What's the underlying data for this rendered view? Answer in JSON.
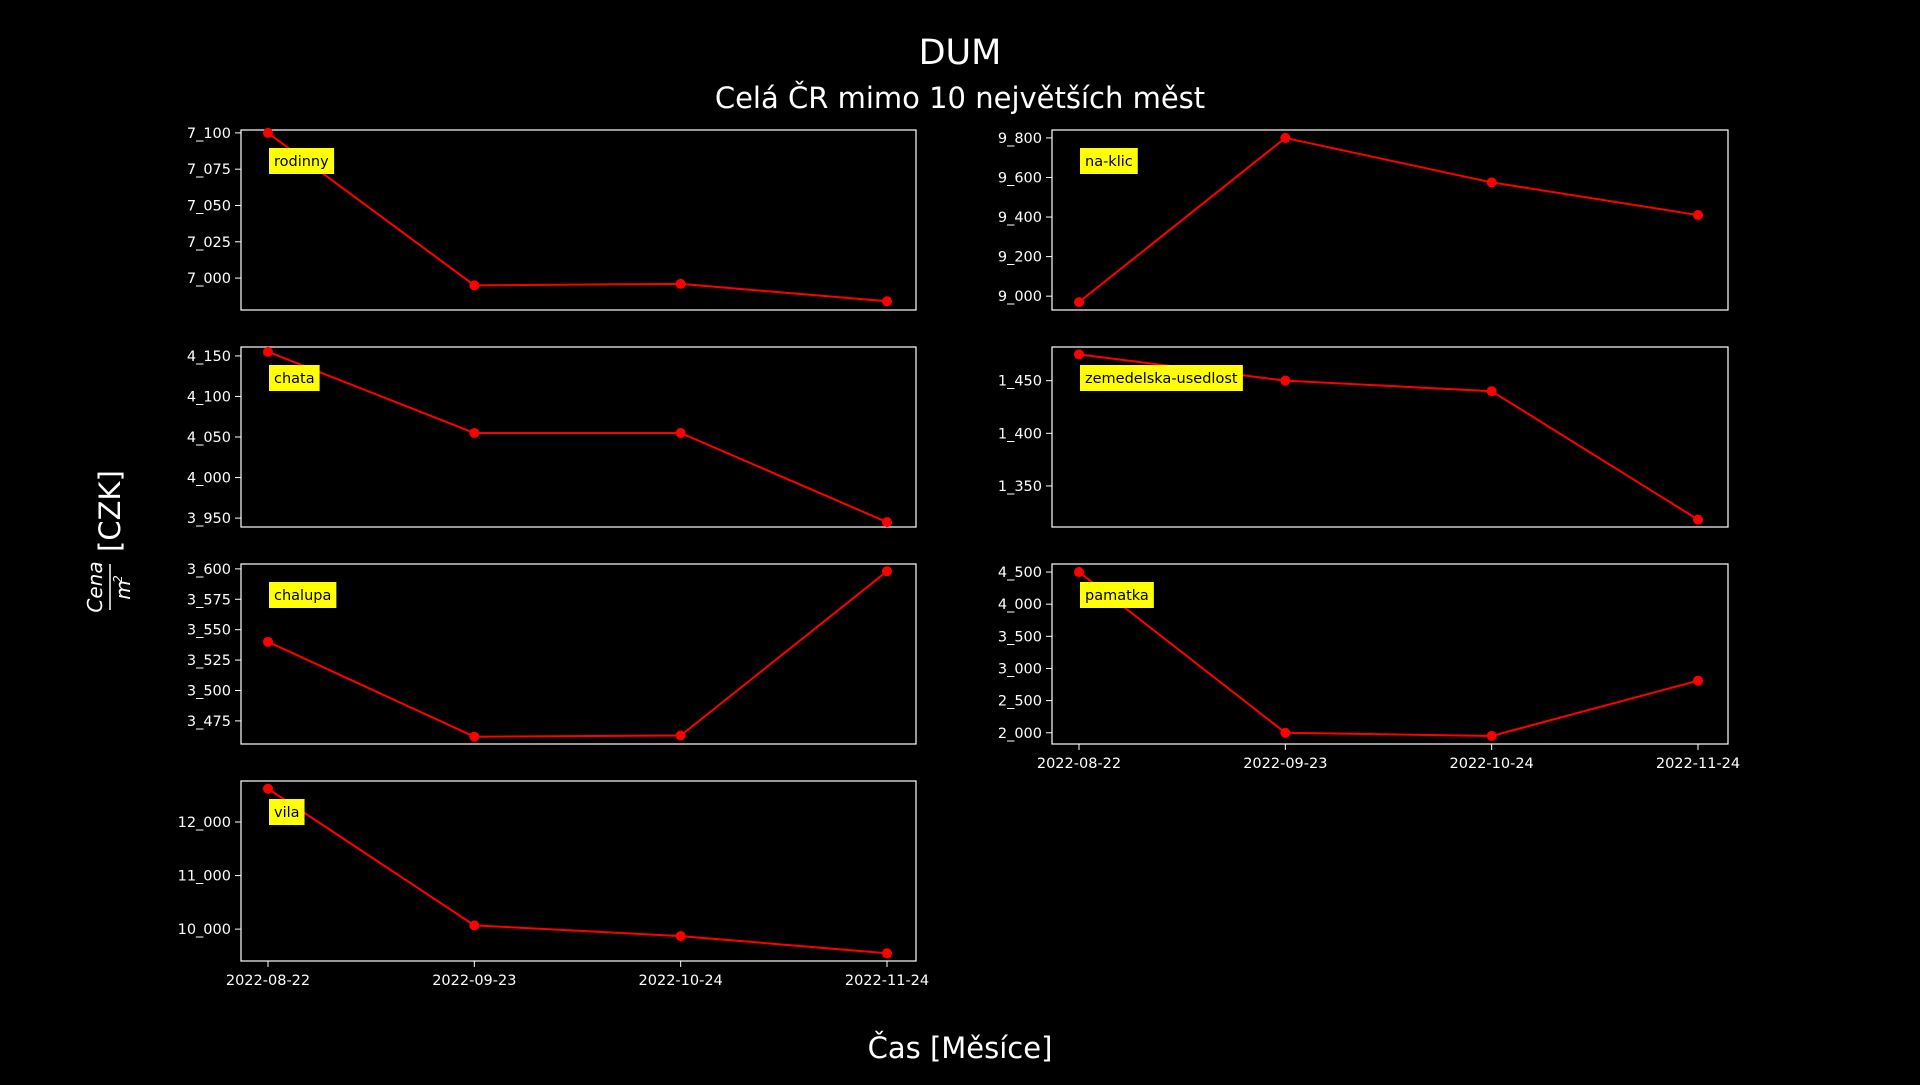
{
  "colors": {
    "background": "#000000",
    "line": "#ff0000",
    "axes": "#ffffff",
    "label_box": "#ffff00",
    "label_text": "#000000"
  },
  "chart_data": {
    "type": "line",
    "title": "DUM",
    "subtitle": "Celá ČR mimo 10 největších měst",
    "xlabel": "Čas [Měsíce]",
    "ylabel": {
      "numerator": "Cena",
      "denominator": "m",
      "exponent": "2",
      "unit": "[CZK]"
    },
    "x": [
      "2022-08-22",
      "2022-09-23",
      "2022-10-24",
      "2022-11-24"
    ],
    "grid": false,
    "panels": [
      {
        "name": "rodinny",
        "values": [
          7100,
          6995,
          6996,
          6984
        ],
        "ylim": [
          6978,
          7102
        ],
        "yticks": [
          7000,
          7025,
          7050,
          7075,
          7100
        ],
        "ytick_labels": [
          "7_000",
          "7_025",
          "7_050",
          "7_075",
          "7_100"
        ]
      },
      {
        "name": "na-klic",
        "values": [
          8970,
          9800,
          9575,
          9410
        ],
        "ylim": [
          8930,
          9840
        ],
        "yticks": [
          9000,
          9200,
          9400,
          9600,
          9800
        ],
        "ytick_labels": [
          "9_000",
          "9_200",
          "9_400",
          "9_600",
          "9_800"
        ]
      },
      {
        "name": "chata",
        "values": [
          4155,
          4055,
          4055,
          3945
        ],
        "ylim": [
          3939,
          4161
        ],
        "yticks": [
          3950,
          4000,
          4050,
          4100,
          4150
        ],
        "ytick_labels": [
          "3_950",
          "4_000",
          "4_050",
          "4_100",
          "4_150"
        ]
      },
      {
        "name": "zemedelska-usedlost",
        "values": [
          1475,
          1450,
          1440,
          1318
        ],
        "ylim": [
          1311,
          1482
        ],
        "yticks": [
          1350,
          1400,
          1450
        ],
        "ytick_labels": [
          "1_350",
          "1_400",
          "1_450"
        ]
      },
      {
        "name": "chalupa",
        "values": [
          3540,
          3462,
          3463,
          3598
        ],
        "ylim": [
          3456,
          3604
        ],
        "yticks": [
          3475,
          3500,
          3525,
          3550,
          3575,
          3600
        ],
        "ytick_labels": [
          "3_475",
          "3_500",
          "3_525",
          "3_550",
          "3_575",
          "3_600"
        ]
      },
      {
        "name": "pamatka",
        "values": [
          4500,
          2000,
          1950,
          2810
        ],
        "ylim": [
          1825,
          4625
        ],
        "yticks": [
          2000,
          2500,
          3000,
          3500,
          4000,
          4500
        ],
        "ytick_labels": [
          "2_000",
          "2_500",
          "3_000",
          "3_500",
          "4_000",
          "4_500"
        ]
      },
      {
        "name": "vila",
        "values": [
          12620,
          10070,
          9870,
          9550
        ],
        "ylim": [
          9405,
          12765
        ],
        "yticks": [
          10000,
          11000,
          12000
        ],
        "ytick_labels": [
          "10_000",
          "11_000",
          "12_000"
        ]
      }
    ]
  }
}
